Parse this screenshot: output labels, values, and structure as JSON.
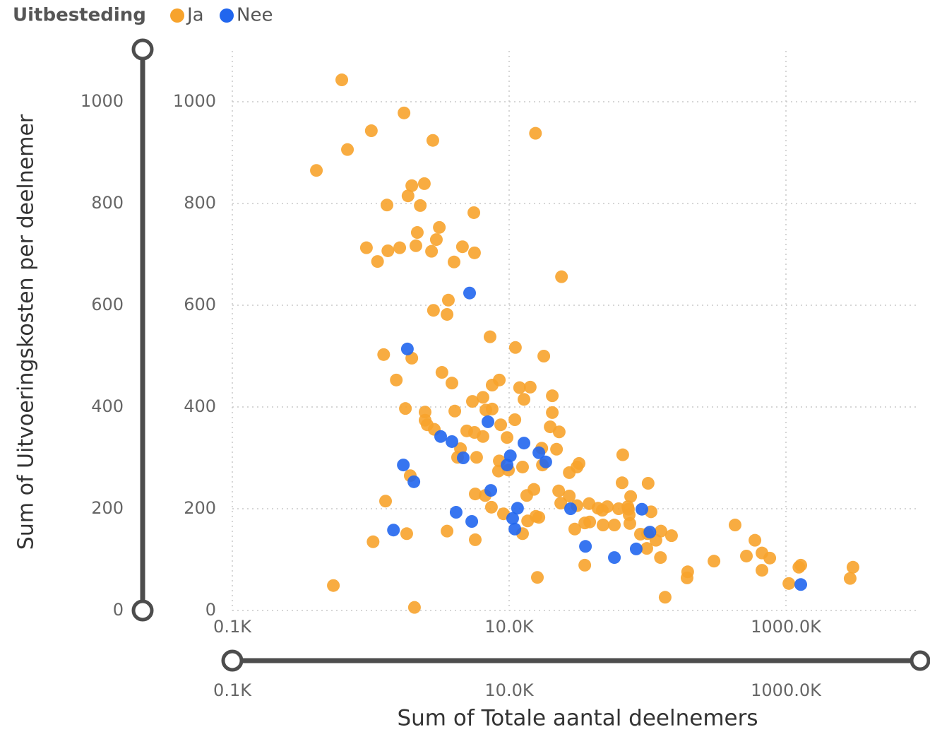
{
  "chart_data": {
    "type": "scatter",
    "legend_title": "Uitbesteding",
    "x_label": "Sum of Totale aantal deelnemers",
    "y_label": "Sum of Uitvoeringskosten per deelnemer",
    "xscale": "log",
    "xlim": [
      100,
      10000000
    ],
    "ylim": [
      0,
      1100
    ],
    "xticks": [
      {
        "value": 100,
        "label": "0.1K"
      },
      {
        "value": 10000,
        "label": "10.0K"
      },
      {
        "value": 1000000,
        "label": "1000.0K"
      }
    ],
    "yticks": [
      0,
      200,
      400,
      600,
      800,
      1000
    ],
    "grid": true,
    "series": [
      {
        "name": "Ja",
        "color": "#f7a32c",
        "x": [
          618,
          1740,
          1010,
          15500,
          679,
          2810,
          405,
          2440,
          1980,
          1860,
          1310,
          2280,
          5560,
          3130,
          2170,
          2980,
          931,
          1330,
          1620,
          2120,
          2750,
          4600,
          5620,
          1120,
          4000,
          23900,
          3640,
          2840,
          3560,
          7280,
          11100,
          1240,
          17800,
          1980,
          3270,
          1530,
          8490,
          3860,
          7540,
          11900,
          14200,
          12800,
          6470,
          20500,
          1780,
          2470,
          4050,
          5430,
          6790,
          7540,
          2470,
          2560,
          20500,
          2880,
          11000,
          8690,
          4940,
          6470,
          5620,
          23000,
          19800,
          9660,
          4450,
          17200,
          22000,
          4240,
          5820,
          8490,
          66200,
          12500,
          17400,
          27200,
          32000,
          30900,
          9890,
          8380,
          1930,
          65500,
          101000,
          22800,
          15100,
          5690,
          6710,
          13400,
          27200,
          75500,
          72000,
          1280,
          30900,
          37800,
          23600,
          7450,
          9100,
          43900,
          51200,
          61800,
          72800,
          106000,
          47100,
          73700,
          16400,
          15600,
          13600,
          35200,
          38200,
          47700,
          57600,
          74500,
          29800,
          125000,
          88900,
          100000,
          149000,
          3560,
          1820,
          12500,
          115000,
          5690,
          1040,
          98800,
          429000,
          597000,
          671000,
          518000,
          764000,
          302000,
          124000,
          35200,
          195000,
          193000,
          1280000,
          1240000,
          3050000,
          671000,
          1050000,
          2910000,
          16000,
          537,
          134000,
          2070
        ],
        "values": [
          1043,
          978,
          943,
          938,
          906,
          924,
          865,
          839,
          835,
          815,
          797,
          796,
          782,
          753,
          743,
          729,
          713,
          707,
          713,
          717,
          706,
          715,
          703,
          686,
          685,
          656,
          610,
          590,
          582,
          538,
          517,
          503,
          500,
          496,
          468,
          453,
          453,
          447,
          443,
          438,
          439,
          415,
          419,
          422,
          397,
          390,
          392,
          411,
          394,
          396,
          374,
          365,
          389,
          356,
          375,
          365,
          353,
          342,
          350,
          351,
          361,
          340,
          318,
          319,
          317,
          301,
          301,
          294,
          306,
          282,
          286,
          271,
          289,
          282,
          276,
          274,
          265,
          251,
          250,
          235,
          238,
          229,
          226,
          226,
          225,
          224,
          204,
          215,
          206,
          210,
          211,
          203,
          190,
          201,
          204,
          200,
          199,
          194,
          197,
          188,
          183,
          185,
          176,
          172,
          174,
          168,
          168,
          171,
          160,
          156,
          150,
          151,
          147,
          156,
          151,
          151,
          138,
          139,
          135,
          122,
          168,
          138,
          113,
          107,
          103,
          97,
          104,
          89,
          76,
          64,
          89,
          85,
          85,
          79,
          53,
          63,
          65,
          49,
          26,
          6
        ]
      },
      {
        "name": "Nee",
        "color": "#2166ee",
        "x": [
          5180,
          1840,
          7030,
          3200,
          3860,
          12800,
          16400,
          18400,
          4660,
          10200,
          9660,
          1720,
          2050,
          7370,
          11500,
          27800,
          4140,
          91000,
          5370,
          10600,
          11000,
          1460,
          104000,
          35600,
          82800,
          57600,
          1280000
        ],
        "values": [
          624,
          514,
          371,
          342,
          332,
          329,
          310,
          292,
          300,
          304,
          286,
          286,
          253,
          236,
          201,
          200,
          193,
          199,
          175,
          181,
          160,
          158,
          154,
          126,
          121,
          104,
          51
        ]
      }
    ]
  }
}
